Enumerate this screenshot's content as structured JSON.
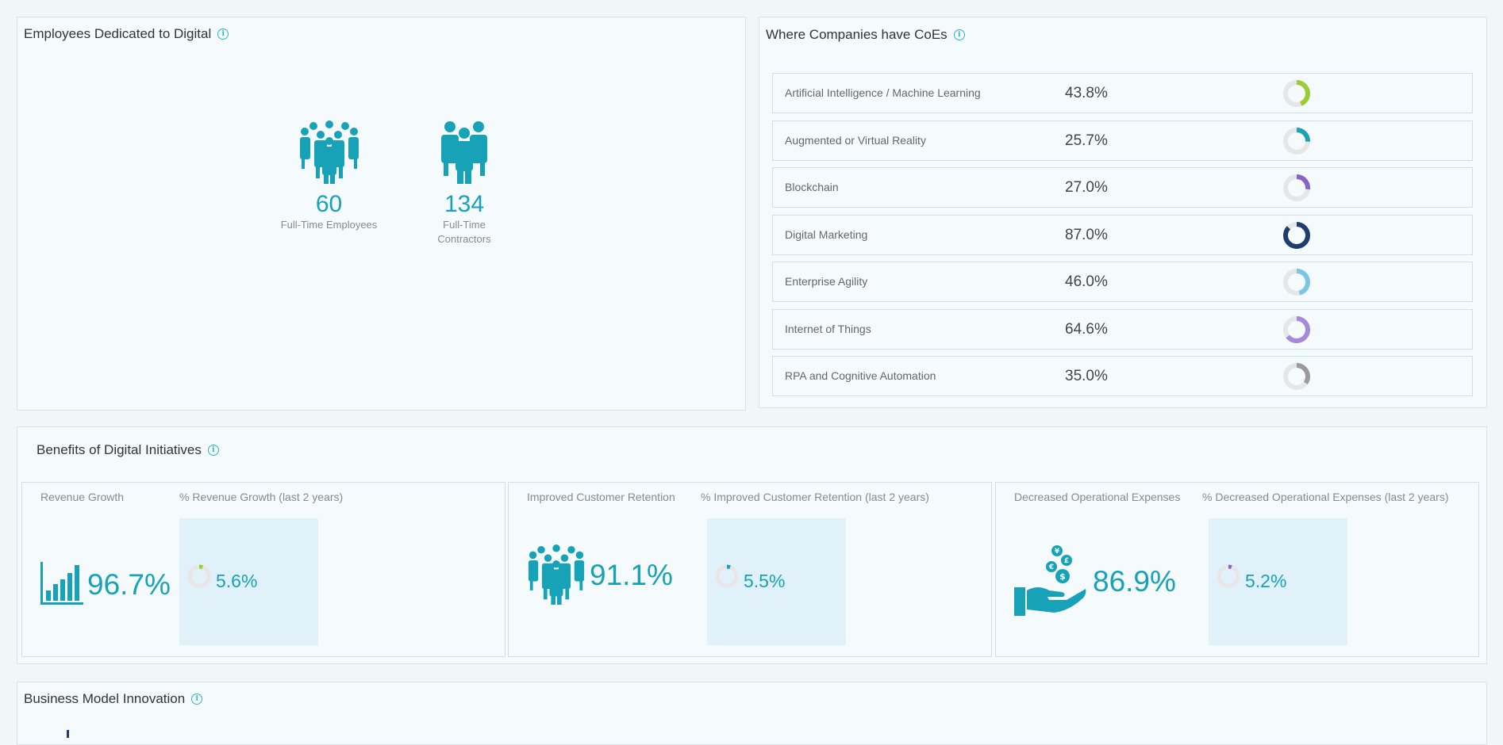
{
  "employees": {
    "title": "Employees Dedicated to Digital",
    "full_time": {
      "value": "60",
      "label": "Full-Time Employees"
    },
    "contractors": {
      "value": "134",
      "label_line1": "Full-Time",
      "label_line2": "Contractors"
    }
  },
  "coes": {
    "title": "Where Companies have CoEs",
    "items": [
      {
        "label": "Artificial Intelligence / Machine Learning",
        "value": "43.8%",
        "pct": 43.8,
        "color": "#9acd32"
      },
      {
        "label": "Augmented or Virtual Reality",
        "value": "25.7%",
        "pct": 25.7,
        "color": "#1aa3b5"
      },
      {
        "label": "Blockchain",
        "value": "27.0%",
        "pct": 27.0,
        "color": "#8a63c9"
      },
      {
        "label": "Digital Marketing",
        "value": "87.0%",
        "pct": 87.0,
        "color": "#1d3e6e"
      },
      {
        "label": "Enterprise Agility",
        "value": "46.0%",
        "pct": 46.0,
        "color": "#7cc6e4"
      },
      {
        "label": "Internet of Things",
        "value": "64.6%",
        "pct": 64.6,
        "color": "#a68ad9"
      },
      {
        "label": "RPA and Cognitive Automation",
        "value": "35.0%",
        "pct": 35.0,
        "color": "#9a9a9a"
      }
    ]
  },
  "benefits": {
    "title": "Benefits of Digital Initiatives",
    "items": [
      {
        "label": "Revenue Growth",
        "value": "96.7%",
        "icon": "bar-chart-icon",
        "growth_label": "% Revenue Growth (last 2 years)",
        "growth_value": "5.6%",
        "growth_pct": 5.6,
        "color": "#9acd32"
      },
      {
        "label": "Improved Customer Retention",
        "value": "91.1%",
        "icon": "people-group-icon",
        "growth_label": "% Improved Customer Retention (last 2 years)",
        "growth_value": "5.5%",
        "growth_pct": 5.5,
        "color": "#1aa3b5"
      },
      {
        "label": "Decreased Operational Expenses",
        "value": "86.9%",
        "icon": "hand-coins-icon",
        "growth_label": "% Decreased Operational Expenses (last 2 years)",
        "growth_value": "5.2%",
        "growth_pct": 5.2,
        "color": "#8a63c9"
      }
    ]
  },
  "business_model": {
    "title": "Business Model Innovation"
  }
}
